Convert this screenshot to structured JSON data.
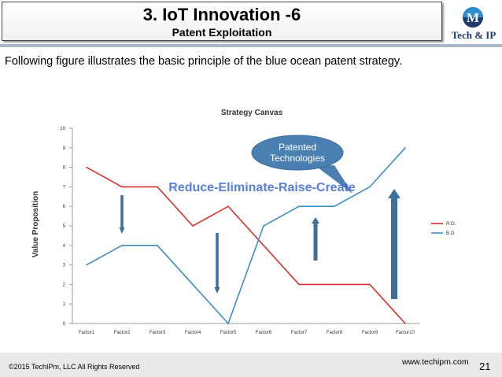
{
  "slide": {
    "title": "3. IoT Innovation -6",
    "subtitle": "Patent Exploitation",
    "logo_text": "Tech & IP",
    "logo_letter": "M",
    "caption": "Following figure illustrates the basic principle of the blue ocean patent strategy.",
    "footer_copyright": "©2015 TechIPm, LLC All Rights Reserved",
    "footer_website": "www.techipm.com",
    "page_number": "21"
  },
  "chart_data": {
    "type": "line",
    "title": "Strategy Canvas",
    "ylabel": "Value Proposition",
    "xlabel": "",
    "categories": [
      "Factor1",
      "Factor2",
      "Factor3",
      "Factor4",
      "Factor5",
      "Factor6",
      "Factor7",
      "Factor8",
      "Factor9",
      "Factor10"
    ],
    "ylim": [
      0,
      10
    ],
    "yticks": [
      "0",
      "1",
      "2",
      "3",
      "4",
      "5",
      "6",
      "7",
      "8",
      "9",
      "10"
    ],
    "grid": false,
    "legend_position": "right",
    "series": [
      {
        "name": "R.O.",
        "color": "#d9312e",
        "values": [
          8,
          7,
          7,
          5,
          6,
          4,
          2,
          2,
          2,
          0
        ]
      },
      {
        "name": "B.O",
        "color": "#3d8fbf",
        "values": [
          3,
          4,
          4,
          2,
          0,
          5,
          6,
          6,
          7,
          9
        ]
      }
    ],
    "banner_text": "Reduce-Eliminate-Raise-Create",
    "callout_text": [
      "Patented",
      "Technologies"
    ],
    "arrow_color": "#3e6f9c",
    "accent_colors": {
      "banner": "#3b66d6",
      "callout": "#4a7fb2"
    }
  }
}
